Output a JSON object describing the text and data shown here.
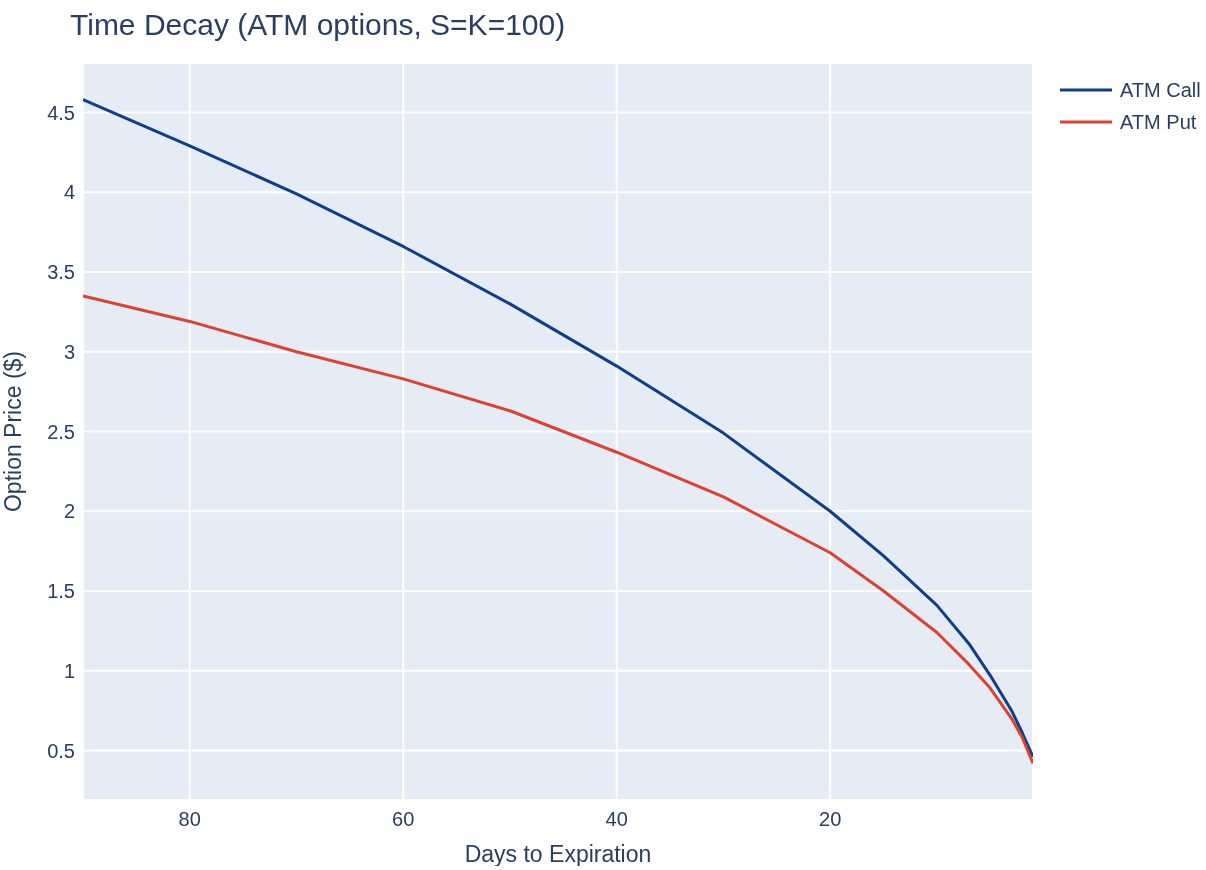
{
  "chart_data": {
    "type": "line",
    "title": "Time Decay (ATM options, S=K=100)",
    "xlabel": "Days to Expiration",
    "ylabel": "Option Price ($)",
    "x": [
      90,
      80,
      70,
      60,
      50,
      40,
      30,
      20,
      15,
      10,
      7,
      5,
      3,
      2,
      1
    ],
    "series": [
      {
        "name": "ATM Call",
        "color": "#0d3f8a",
        "values": [
          4.58,
          4.29,
          3.99,
          3.66,
          3.3,
          2.91,
          2.49,
          2.0,
          1.72,
          1.41,
          1.17,
          0.97,
          0.75,
          0.61,
          0.46
        ]
      },
      {
        "name": "ATM Put",
        "color": "#e0402f",
        "values": [
          3.35,
          3.19,
          3.0,
          2.83,
          2.63,
          2.37,
          2.09,
          1.74,
          1.5,
          1.24,
          1.04,
          0.89,
          0.7,
          0.58,
          0.42
        ]
      }
    ],
    "xlim": [
      90,
      1
    ],
    "xticks": [
      80,
      60,
      40,
      20
    ],
    "ylim": [
      0.19,
      4.81
    ],
    "yticks": [
      0.5,
      1,
      1.5,
      2,
      2.5,
      3,
      3.5,
      4,
      4.5
    ],
    "grid": true,
    "legend": "top right",
    "marker": "none",
    "line_style": "solid"
  }
}
